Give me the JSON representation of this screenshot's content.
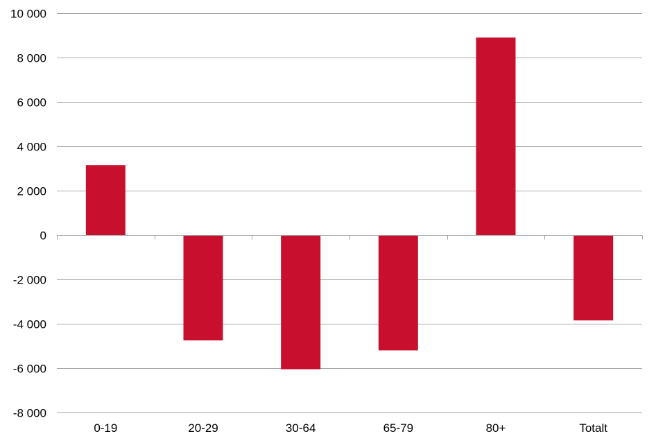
{
  "chart_data": {
    "type": "bar",
    "categories": [
      "0-19",
      "20-29",
      "30-64",
      "65-79",
      "80+",
      "Totalt"
    ],
    "values": [
      3150,
      -4750,
      -6050,
      -5200,
      8900,
      -3850
    ],
    "ylim": [
      -8000,
      10000
    ],
    "yticks": [
      10000,
      8000,
      6000,
      4000,
      2000,
      0,
      -2000,
      -4000,
      -6000,
      -8000
    ],
    "ytick_labels": [
      "10 000",
      "8 000",
      "6 000",
      "4 000",
      "2 000",
      "0",
      "-2 000",
      "-4 000",
      "-6 000",
      "-8 000"
    ],
    "grid": true,
    "bar_color": "#c8102e",
    "title": "",
    "xlabel": "",
    "ylabel": ""
  }
}
